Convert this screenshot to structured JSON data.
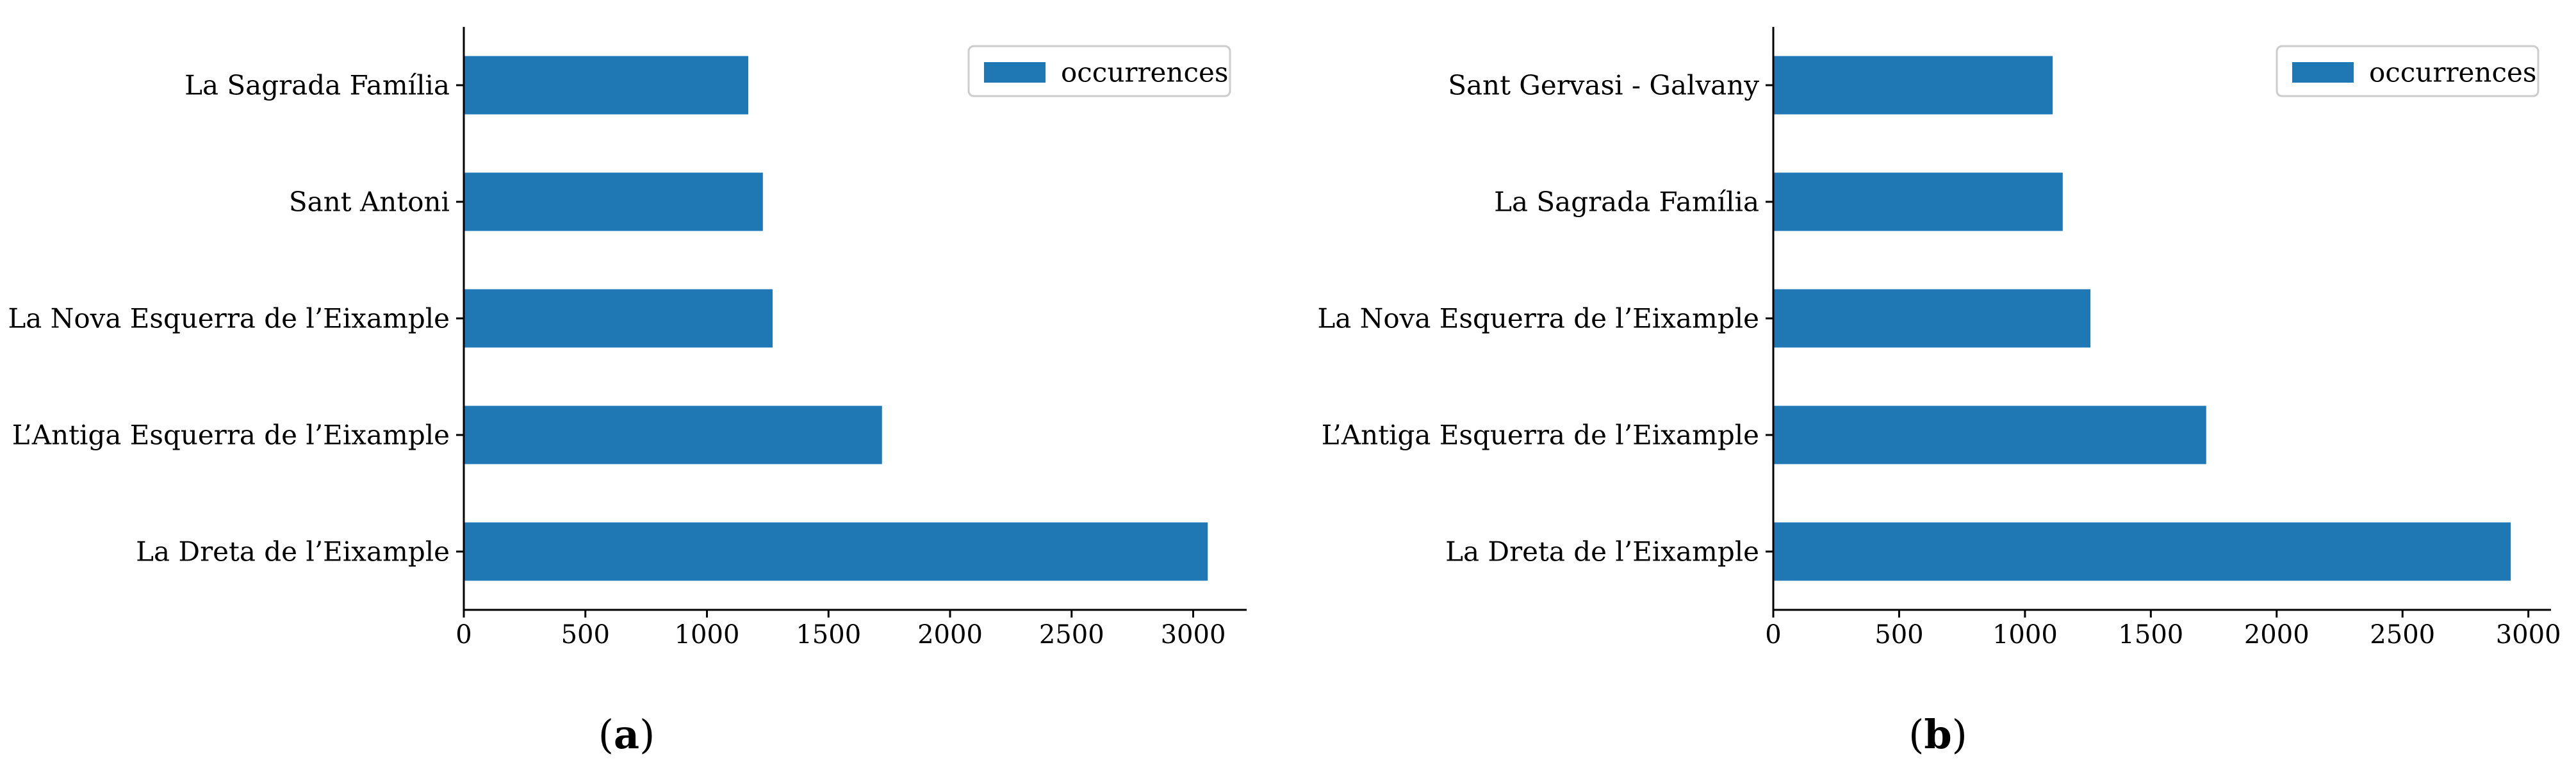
{
  "chart_data": [
    {
      "type": "bar",
      "orientation": "horizontal",
      "panel_label": "a",
      "categories": [
        "La Sagrada Família",
        "Sant Antoni",
        "La Nova Esquerra de l’Eixample",
        "L’Antiga Esquerra de l’Eixample",
        "La Dreta de l’Eixample"
      ],
      "series": [
        {
          "name": "occurrences",
          "values": [
            1170,
            1230,
            1270,
            1720,
            3060
          ],
          "color": "#1f77b4"
        }
      ],
      "xlim": [
        0,
        3220
      ],
      "xticks": [
        0,
        500,
        1000,
        1500,
        2000,
        2500,
        3000
      ],
      "legend": "top-right",
      "grid": false
    },
    {
      "type": "bar",
      "orientation": "horizontal",
      "panel_label": "b",
      "categories": [
        "Sant Gervasi - Galvany",
        "La Sagrada Família",
        "La Nova Esquerra de l’Eixample",
        "L’Antiga Esquerra de l’Eixample",
        "La Dreta de l’Eixample"
      ],
      "series": [
        {
          "name": "occurrences",
          "values": [
            1110,
            1150,
            1260,
            1720,
            2930
          ],
          "color": "#1f77b4"
        }
      ],
      "xlim": [
        0,
        3090
      ],
      "xticks": [
        0,
        500,
        1000,
        1500,
        2000,
        2500,
        3000
      ],
      "legend": "top-right",
      "grid": false
    }
  ]
}
